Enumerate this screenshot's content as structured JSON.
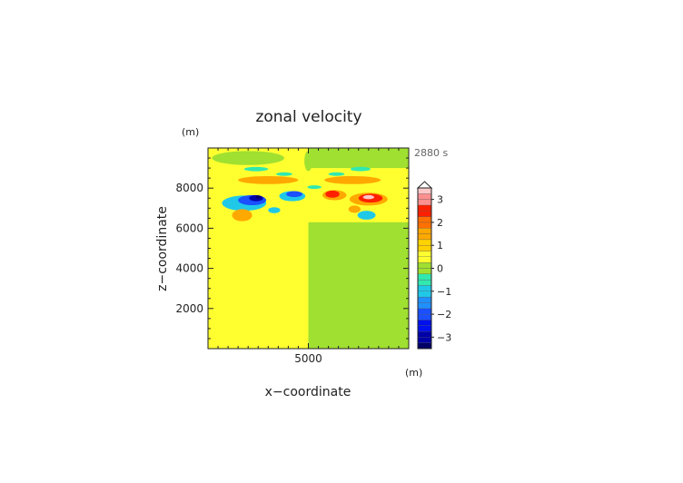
{
  "chart_data": {
    "type": "heatmap",
    "title": "zonal velocity",
    "time_label": "2880 s",
    "xlabel": "x−coordinate",
    "ylabel": "z−coordinate",
    "x_unit": "(m)",
    "z_unit": "(m)",
    "xlim": [
      0,
      10000
    ],
    "zlim": [
      0,
      10000
    ],
    "x_ticks": [
      {
        "value": 5000,
        "label": "5000"
      }
    ],
    "z_ticks": [
      {
        "value": 2000,
        "label": "2000"
      },
      {
        "value": 4000,
        "label": "4000"
      },
      {
        "value": 6000,
        "label": "6000"
      },
      {
        "value": 8000,
        "label": "8000"
      }
    ],
    "colorbar": {
      "min": -3.5,
      "max": 3.5,
      "step": 0.25,
      "ticks": [
        {
          "value": 3,
          "label": "3"
        },
        {
          "value": 2,
          "label": "2"
        },
        {
          "value": 1,
          "label": "1"
        },
        {
          "value": 0,
          "label": "0"
        },
        {
          "value": -1,
          "label": "−1"
        },
        {
          "value": -2,
          "label": "−2"
        },
        {
          "value": -3,
          "label": "−3"
        }
      ],
      "color_stops": [
        {
          "value": -3.5,
          "color": "#000066"
        },
        {
          "value": -3.0,
          "color": "#0000a8"
        },
        {
          "value": -2.5,
          "color": "#0010ee"
        },
        {
          "value": -2.0,
          "color": "#1a50ff"
        },
        {
          "value": -1.5,
          "color": "#2090ff"
        },
        {
          "value": -1.0,
          "color": "#20c8e8"
        },
        {
          "value": -0.5,
          "color": "#30e8b0"
        },
        {
          "value": 0.0,
          "color": "#a0e030"
        },
        {
          "value": 0.5,
          "color": "#ffff30"
        },
        {
          "value": 1.0,
          "color": "#ffd200"
        },
        {
          "value": 1.5,
          "color": "#ffa800"
        },
        {
          "value": 2.0,
          "color": "#ff7000"
        },
        {
          "value": 2.5,
          "color": "#ff2000"
        },
        {
          "value": 3.0,
          "color": "#ff9090"
        },
        {
          "value": 3.5,
          "color": "#ffc8c8"
        }
      ]
    },
    "regions": [
      {
        "x": [
          0,
          5000
        ],
        "z": [
          0,
          10000
        ],
        "value": 0.5
      },
      {
        "x": [
          5000,
          10000
        ],
        "z": [
          0,
          10000
        ],
        "value": 0.0
      },
      {
        "x": [
          0,
          10000
        ],
        "z": [
          6300,
          9000
        ],
        "value": 0.5
      }
    ],
    "features": [
      {
        "x": 1800,
        "z": 7250,
        "rx": 1100,
        "rz": 380,
        "value": -1.0
      },
      {
        "x": 2200,
        "z": 7400,
        "rx": 700,
        "rz": 250,
        "value": -2.0
      },
      {
        "x": 2400,
        "z": 7500,
        "rx": 350,
        "rz": 150,
        "value": -3.0
      },
      {
        "x": 2500,
        "z": 7550,
        "rx": 120,
        "rz": 70,
        "value": -3.5
      },
      {
        "x": 4200,
        "z": 7600,
        "rx": 650,
        "rz": 250,
        "value": -1.0
      },
      {
        "x": 4300,
        "z": 7700,
        "rx": 400,
        "rz": 150,
        "value": -2.0
      },
      {
        "x": 3300,
        "z": 6900,
        "rx": 300,
        "rz": 150,
        "value": -1.0
      },
      {
        "x": 1700,
        "z": 6650,
        "rx": 500,
        "rz": 300,
        "value": 1.5
      },
      {
        "x": 6300,
        "z": 7650,
        "rx": 600,
        "rz": 250,
        "value": 1.5
      },
      {
        "x": 6200,
        "z": 7700,
        "rx": 350,
        "rz": 180,
        "value": 2.5
      },
      {
        "x": 8000,
        "z": 7450,
        "rx": 950,
        "rz": 320,
        "value": 1.5
      },
      {
        "x": 8100,
        "z": 7500,
        "rx": 600,
        "rz": 220,
        "value": 2.5
      },
      {
        "x": 8000,
        "z": 7550,
        "rx": 280,
        "rz": 100,
        "value": 3.5
      },
      {
        "x": 7300,
        "z": 6950,
        "rx": 300,
        "rz": 180,
        "value": 1.5
      },
      {
        "x": 7900,
        "z": 6650,
        "rx": 450,
        "rz": 220,
        "value": -1.0
      },
      {
        "x": 3000,
        "z": 8400,
        "rx": 1500,
        "rz": 200,
        "value": 1.5
      },
      {
        "x": 7200,
        "z": 8400,
        "rx": 1400,
        "rz": 200,
        "value": 1.5
      },
      {
        "x": 2400,
        "z": 8950,
        "rx": 600,
        "rz": 110,
        "value": -0.5
      },
      {
        "x": 7600,
        "z": 8950,
        "rx": 500,
        "rz": 110,
        "value": -0.5
      },
      {
        "x": 3800,
        "z": 8700,
        "rx": 400,
        "rz": 90,
        "value": -0.5
      },
      {
        "x": 6400,
        "z": 8700,
        "rx": 400,
        "rz": 90,
        "value": -0.5
      },
      {
        "x": 5300,
        "z": 8050,
        "rx": 350,
        "rz": 90,
        "value": -0.5
      },
      {
        "x": 2000,
        "z": 9500,
        "rx": 1800,
        "rz": 350,
        "value": 0.0
      },
      {
        "x": 8000,
        "z": 9500,
        "rx": 1800,
        "rz": 350,
        "value": 0.0
      },
      {
        "x": 5000,
        "z": 9350,
        "rx": 200,
        "rz": 500,
        "value": 0.0
      }
    ]
  }
}
